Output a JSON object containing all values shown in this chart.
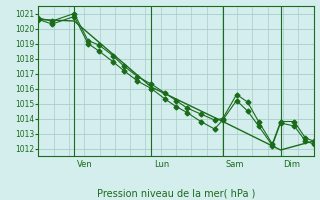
{
  "xlabel": "Pression niveau de la mer( hPa )",
  "background_color": "#d4eeee",
  "grid_color": "#aacccc",
  "line_color": "#1a6b1a",
  "ylim": [
    1011.5,
    1021.5
  ],
  "yticks": [
    1012,
    1013,
    1014,
    1015,
    1016,
    1017,
    1018,
    1019,
    1020,
    1021
  ],
  "day_positions": [
    0.13,
    0.41,
    0.67,
    0.88
  ],
  "day_labels": [
    "Ven",
    "Lun",
    "Sam",
    "Dim"
  ],
  "series1_x": [
    0.0,
    0.05,
    0.13,
    0.18,
    0.22,
    0.27,
    0.31,
    0.36,
    0.41,
    0.46,
    0.5,
    0.54,
    0.59,
    0.64,
    0.67,
    0.72,
    0.76,
    0.8,
    0.85,
    0.88,
    0.93,
    0.97,
    1.0
  ],
  "series1_y": [
    1020.7,
    1020.5,
    1021.0,
    1019.2,
    1018.9,
    1018.2,
    1017.5,
    1016.8,
    1016.3,
    1015.7,
    1015.2,
    1014.7,
    1014.3,
    1013.9,
    1014.0,
    1015.6,
    1015.1,
    1013.8,
    1012.3,
    1013.8,
    1013.8,
    1012.7,
    1012.5
  ],
  "series2_x": [
    0.0,
    0.05,
    0.13,
    0.18,
    0.22,
    0.27,
    0.31,
    0.36,
    0.41,
    0.46,
    0.5,
    0.54,
    0.59,
    0.64,
    0.67,
    0.72,
    0.76,
    0.8,
    0.85,
    0.88,
    0.93,
    0.97,
    1.0
  ],
  "series2_y": [
    1020.6,
    1020.3,
    1020.8,
    1019.0,
    1018.5,
    1017.8,
    1017.2,
    1016.5,
    1016.0,
    1015.3,
    1014.8,
    1014.4,
    1013.8,
    1013.3,
    1013.9,
    1015.2,
    1014.5,
    1013.5,
    1012.2,
    1013.7,
    1013.5,
    1012.5,
    1012.3
  ],
  "series3_x": [
    0.0,
    0.13,
    0.41,
    0.67,
    0.88,
    1.0
  ],
  "series3_y": [
    1020.6,
    1020.5,
    1016.1,
    1013.8,
    1011.9,
    1012.5
  ]
}
